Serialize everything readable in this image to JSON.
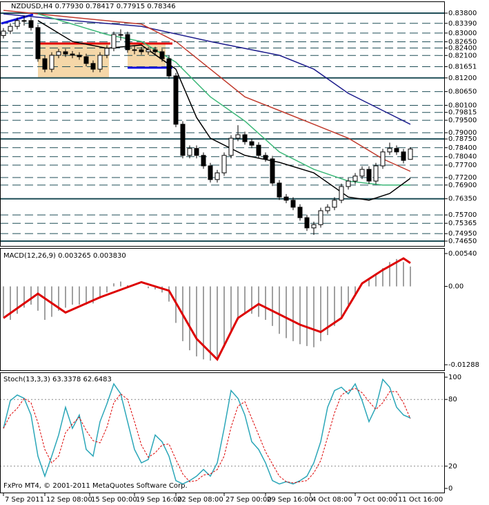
{
  "header_title": "NZDUSD,H4  0.77930 0.78417 0.77915 0.78346",
  "footer": "FxPro MT4, © 2001-2011 MetaQuotes Software Corp.",
  "chart_data": [
    {
      "type": "candlestick",
      "xlim": [
        -0.5,
        64
      ],
      "ylim": [
        0.7465,
        0.838
      ],
      "yticks": [
        {
          "value": 0.838,
          "label": "0.83800",
          "line": "solid"
        },
        {
          "value": 0.8339,
          "label": "0.83390"
        },
        {
          "value": 0.83,
          "label": "0.83000"
        },
        {
          "value": 0.8265,
          "label": "0.82650"
        },
        {
          "value": 0.824,
          "label": "0.82400"
        },
        {
          "value": 0.821,
          "label": "0.82100"
        },
        0.81651,
        {
          "value": 0.812,
          "label": "0.81200",
          "line": "solid"
        },
        {
          "value": 0.8065,
          "label": "0.80650"
        },
        {
          "value": 0.801,
          "label": "0.80100"
        },
        0.79815,
        {
          "value": 0.795,
          "label": "0.79500"
        },
        {
          "value": 0.79,
          "label": "0.79000"
        },
        {
          "value": 0.7875,
          "label": "0.78750",
          "line": "solid"
        },
        {
          "value": 0.784,
          "label": "0.78400"
        },
        {
          "value": 0.7804,
          "label": "0.78040"
        },
        {
          "value": 0.777,
          "label": "0.77700"
        },
        {
          "value": 0.772,
          "label": "0.77200"
        },
        {
          "value": 0.769,
          "label": "0.76900"
        },
        {
          "value": 0.7635,
          "label": "0.76350",
          "line": "solid"
        },
        {
          "value": 0.757,
          "label": "0.75700"
        },
        0.75365,
        {
          "value": 0.7495,
          "label": "0.74950"
        },
        {
          "value": 0.7465,
          "label": "0.74650",
          "line": "solid"
        }
      ],
      "ohlc": [
        [
          0.829,
          0.832,
          0.8278,
          0.8308
        ],
        [
          0.8308,
          0.8339,
          0.8296,
          0.8327
        ],
        [
          0.8327,
          0.8362,
          0.8315,
          0.835
        ],
        [
          0.835,
          0.837,
          0.833,
          0.835
        ],
        [
          0.835,
          0.8362,
          0.831,
          0.8322
        ],
        [
          0.8322,
          0.8334,
          0.8185,
          0.8197
        ],
        [
          0.8197,
          0.8209,
          0.8143,
          0.8155
        ],
        [
          0.8155,
          0.8223,
          0.8143,
          0.8211
        ],
        [
          0.8211,
          0.8237,
          0.8199,
          0.8225
        ],
        [
          0.8225,
          0.8237,
          0.8204,
          0.8216
        ],
        [
          0.8216,
          0.8228,
          0.8199,
          0.8211
        ],
        [
          0.8211,
          0.8223,
          0.8193,
          0.8205
        ],
        [
          0.8205,
          0.8217,
          0.8166,
          0.8178
        ],
        [
          0.8178,
          0.819,
          0.8143,
          0.8155
        ],
        [
          0.8155,
          0.8223,
          0.8143,
          0.8211
        ],
        [
          0.8211,
          0.8251,
          0.8199,
          0.8239
        ],
        [
          0.8239,
          0.8306,
          0.8227,
          0.8294
        ],
        [
          0.8294,
          0.8315,
          0.827,
          0.8294
        ],
        [
          0.8294,
          0.8306,
          0.8221,
          0.8233
        ],
        [
          0.8233,
          0.825,
          0.8215,
          0.8233
        ],
        [
          0.8233,
          0.8245,
          0.8213,
          0.8225
        ],
        [
          0.8225,
          0.8245,
          0.8213,
          0.8233
        ],
        [
          0.8233,
          0.8245,
          0.8213,
          0.8225
        ],
        [
          0.8225,
          0.8237,
          0.8185,
          0.8197
        ],
        [
          0.8197,
          0.8209,
          0.8116,
          0.8128
        ],
        [
          0.8128,
          0.814,
          0.7922,
          0.7934
        ],
        [
          0.7934,
          0.7946,
          0.7797,
          0.7809
        ],
        [
          0.7809,
          0.7849,
          0.7797,
          0.7837
        ],
        [
          0.7837,
          0.7849,
          0.7797,
          0.7809
        ],
        [
          0.7809,
          0.7821,
          0.7755,
          0.7767
        ],
        [
          0.7767,
          0.7779,
          0.77,
          0.7712
        ],
        [
          0.7712,
          0.7751,
          0.77,
          0.7739
        ],
        [
          0.7739,
          0.7821,
          0.7727,
          0.7809
        ],
        [
          0.7809,
          0.789,
          0.7797,
          0.7878
        ],
        [
          0.7878,
          0.793,
          0.7866,
          0.7892
        ],
        [
          0.7892,
          0.7904,
          0.7852,
          0.7864
        ],
        [
          0.7864,
          0.7876,
          0.7838,
          0.785
        ],
        [
          0.785,
          0.7862,
          0.7797,
          0.7809
        ],
        [
          0.7809,
          0.7821,
          0.7783,
          0.7795
        ],
        [
          0.7795,
          0.7807,
          0.7686,
          0.7698
        ],
        [
          0.7698,
          0.771,
          0.763,
          0.7642
        ],
        [
          0.7642,
          0.7654,
          0.7617,
          0.7629
        ],
        [
          0.7629,
          0.7641,
          0.7589,
          0.7601
        ],
        [
          0.7601,
          0.7613,
          0.7547,
          0.7559
        ],
        [
          0.7559,
          0.7571,
          0.7506,
          0.7518
        ],
        [
          0.7518,
          0.7543,
          0.749,
          0.7531
        ],
        [
          0.7531,
          0.7599,
          0.7519,
          0.7587
        ],
        [
          0.7587,
          0.7613,
          0.7575,
          0.7601
        ],
        [
          0.7601,
          0.7641,
          0.7589,
          0.7629
        ],
        [
          0.7629,
          0.7696,
          0.7617,
          0.7684
        ],
        [
          0.7684,
          0.7718,
          0.7672,
          0.7706
        ],
        [
          0.7706,
          0.7738,
          0.7694,
          0.7726
        ],
        [
          0.7726,
          0.7765,
          0.7714,
          0.7753
        ],
        [
          0.7753,
          0.7765,
          0.7694,
          0.7706
        ],
        [
          0.7706,
          0.7779,
          0.7694,
          0.7767
        ],
        [
          0.7767,
          0.7835,
          0.7755,
          0.7823
        ],
        [
          0.7823,
          0.786,
          0.7811,
          0.7837
        ],
        [
          0.7837,
          0.7849,
          0.7811,
          0.7823
        ],
        [
          0.7823,
          0.7835,
          0.7777,
          0.7789
        ],
        [
          0.7793,
          0.78417,
          0.77915,
          0.78346
        ]
      ],
      "lines": [
        {
          "color": "#1c1c8c",
          "x": [
            0,
            10,
            20,
            30,
            40,
            45,
            50,
            55,
            59
          ],
          "values": [
            0.8377,
            0.835,
            0.8327,
            0.8266,
            0.8211,
            0.8155,
            0.8058,
            0.7989,
            0.7934
          ]
        },
        {
          "color": "#c0392b",
          "x": [
            0,
            10,
            20,
            25,
            30,
            35,
            40,
            45,
            50,
            55,
            59
          ],
          "values": [
            0.8391,
            0.8363,
            0.8336,
            0.8266,
            0.8155,
            0.8044,
            0.7989,
            0.7934,
            0.7878,
            0.7795,
            0.7745
          ]
        },
        {
          "color": "#3cb878",
          "x": [
            5,
            10,
            15,
            20,
            25,
            30,
            35,
            40,
            45,
            50,
            55,
            59
          ],
          "values": [
            0.8377,
            0.8336,
            0.8294,
            0.8266,
            0.8183,
            0.8044,
            0.7947,
            0.7823,
            0.7753,
            0.7706,
            0.769,
            0.769
          ]
        },
        {
          "color": "#000000",
          "x": [
            5,
            10,
            15,
            20,
            25,
            28,
            30,
            35,
            40,
            45,
            50,
            53,
            56,
            59
          ],
          "values": [
            0.835,
            0.8266,
            0.8239,
            0.8252,
            0.8155,
            0.7961,
            0.7878,
            0.7809,
            0.7781,
            0.7739,
            0.7642,
            0.7629,
            0.7656,
            0.7717
          ]
        }
      ]
    },
    {
      "type": "macd",
      "title": "MACD(12,26,9) 0.003265 0.003830",
      "xlim": [
        -0.5,
        64
      ],
      "ylim": [
        -0.01288,
        0.0054
      ],
      "yticks": [
        {
          "value": 0.0054,
          "label": "0.00540"
        },
        {
          "value": 0,
          "label": "0.00"
        },
        -0.01288
      ],
      "color": "#a0a0a0",
      "values": [
        -0.005,
        -0.0055,
        -0.0045,
        -0.0035,
        -0.003,
        -0.004,
        -0.0055,
        -0.005,
        -0.004,
        -0.0035,
        -0.003,
        -0.003,
        -0.003,
        -0.0028,
        -0.002,
        -0.001,
        0.0005,
        0.0008,
        0.0002,
        0.0,
        0.0,
        -0.0003,
        -0.0005,
        -0.001,
        -0.0025,
        -0.006,
        -0.009,
        -0.0105,
        -0.0115,
        -0.012,
        -0.0122,
        -0.012,
        -0.01,
        -0.0075,
        -0.0055,
        -0.0045,
        -0.0045,
        -0.005,
        -0.0055,
        -0.0065,
        -0.0078,
        -0.0085,
        -0.009,
        -0.0095,
        -0.0098,
        -0.01,
        -0.009,
        -0.008,
        -0.0065,
        -0.005,
        -0.003,
        -0.0015,
        0.0,
        0.0012,
        0.0018,
        0.003,
        0.004,
        0.0045,
        0.004,
        0.003265
      ],
      "signal": {
        "color": "#dd0000",
        "x": [
          0,
          5,
          9,
          14,
          20,
          24,
          28,
          31,
          34,
          37,
          43,
          46,
          49,
          52,
          55,
          58,
          59
        ],
        "values": [
          -0.0052,
          -0.0012,
          -0.0043,
          -0.0018,
          0.0007,
          -0.0007,
          -0.0086,
          -0.012,
          -0.0052,
          -0.0029,
          -0.0063,
          -0.0075,
          -0.0052,
          0.0005,
          0.0027,
          0.0046,
          0.00383
        ]
      }
    },
    {
      "type": "stochastic",
      "title": "Stoch(13,3,3) 63.3378 62.6483",
      "xlim": [
        -0.5,
        64
      ],
      "ylim": [
        0,
        100
      ],
      "yticks": [
        100,
        80,
        20,
        0
      ],
      "xticks": [
        {
          "value": 0,
          "label": "7 Sep 2011"
        },
        {
          "value": 6,
          "label": "12 Sep 08:00"
        },
        {
          "value": 12.5,
          "label": "15 Sep 00:00"
        },
        {
          "value": 19,
          "label": "19 Sep 16:00"
        },
        {
          "value": 25,
          "label": "22 Sep 08:00"
        },
        {
          "value": 32,
          "label": "27 Sep 00:00"
        },
        {
          "value": 38,
          "label": "29 Sep 16:00"
        },
        {
          "value": 44.5,
          "label": "4 Oct 08:00"
        },
        {
          "value": 51,
          "label": "7 Oct 00:00"
        },
        {
          "value": 57,
          "label": "11 Oct 16:00"
        }
      ],
      "main": {
        "color": "#2aa6b8",
        "values": [
          54,
          79,
          84,
          81,
          66,
          29,
          11,
          29,
          48,
          73,
          54,
          66,
          35,
          29,
          60,
          76,
          94,
          85,
          60,
          35,
          23,
          26,
          48,
          42,
          29,
          7,
          4,
          7,
          11,
          17,
          11,
          23,
          54,
          88,
          81,
          66,
          42,
          35,
          23,
          7,
          4,
          6,
          4,
          7,
          11,
          23,
          42,
          73,
          88,
          91,
          85,
          94,
          79,
          60,
          73,
          98,
          91,
          73,
          66,
          63.3378
        ]
      },
      "signal": {
        "color": "#dd0000",
        "values": [
          54,
          66,
          72,
          81,
          77,
          59,
          35,
          23,
          29,
          50,
          58,
          64,
          52,
          43,
          41,
          55,
          77,
          85,
          80,
          60,
          39,
          28,
          32,
          39,
          40,
          26,
          13,
          6,
          7,
          12,
          13,
          17,
          29,
          55,
          74,
          78,
          63,
          48,
          33,
          22,
          11,
          6,
          5,
          6,
          7,
          14,
          25,
          46,
          68,
          84,
          88,
          90,
          86,
          78,
          71,
          77,
          87,
          87,
          77,
          62.6483
        ]
      }
    }
  ]
}
